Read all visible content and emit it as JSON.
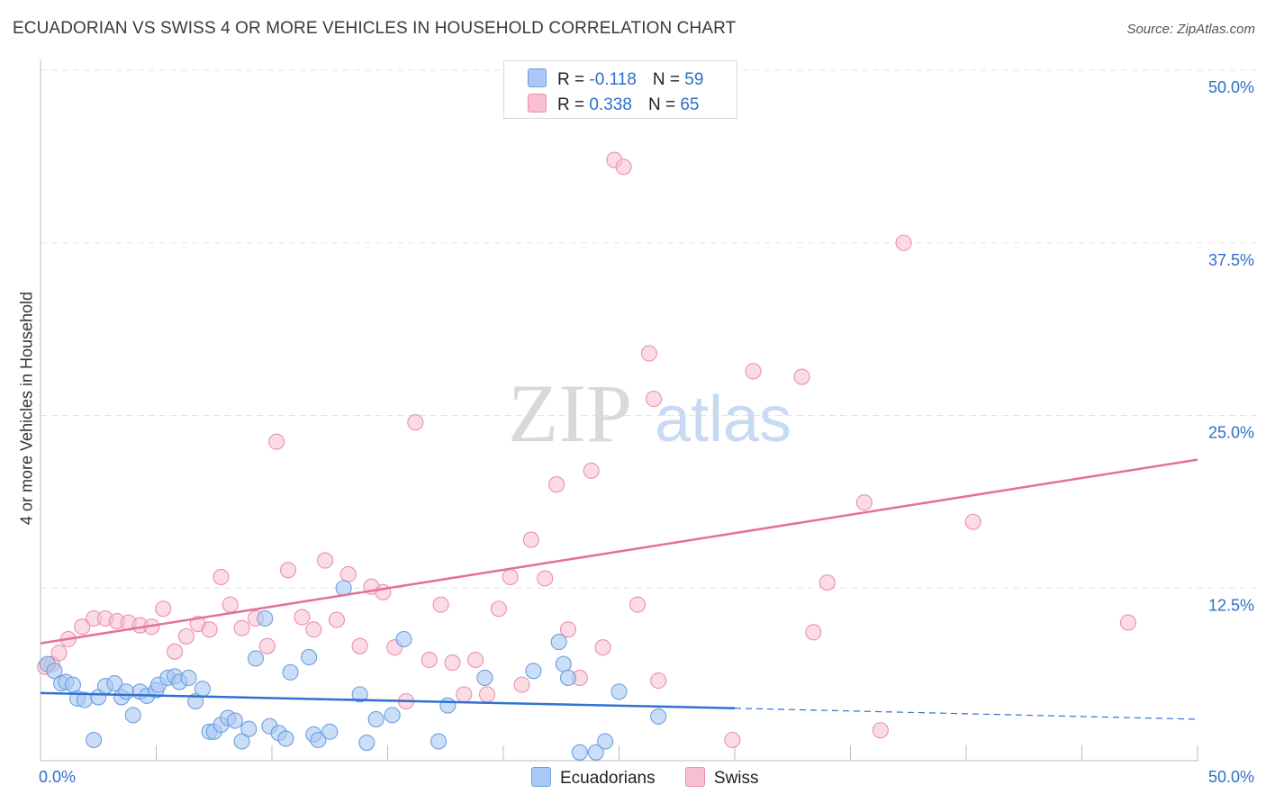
{
  "title": "ECUADORIAN VS SWISS 4 OR MORE VEHICLES IN HOUSEHOLD CORRELATION CHART",
  "source": "Source: ZipAtlas.com",
  "watermark": {
    "zip": "ZIP",
    "atlas": "atlas"
  },
  "legend": {
    "r_label": "R =",
    "n_label": "N =",
    "rows": [
      {
        "r": "-0.118",
        "n": "59"
      },
      {
        "r": "0.338",
        "n": "65"
      }
    ]
  },
  "colors": {
    "ecuadorian_fill": "#a9c8f3",
    "ecuadorian_stroke": "#6d9fde",
    "ecuadorian_line": "#2f72d2",
    "swiss_fill": "#f8bfd0",
    "swiss_stroke": "#ec8fae",
    "swiss_line": "#e4709a",
    "tick_label": "#2e6fc9",
    "grid": "#e4e4e4"
  },
  "chart_data": {
    "type": "scatter",
    "xlabel": "",
    "ylabel": "4 or more Vehicles in Household",
    "xlim": [
      0,
      50
    ],
    "ylim": [
      0,
      50
    ],
    "x_tick_labels": [
      "0.0%",
      "50.0%"
    ],
    "y_ticks": [
      12.5,
      25.0,
      37.5,
      50.0
    ],
    "y_tick_labels": [
      "12.5%",
      "25.0%",
      "37.5%",
      "50.0%"
    ],
    "grid": true,
    "legend_position": "bottom-center",
    "series": [
      {
        "name": "Ecuadorians",
        "r": -0.118,
        "n": 59,
        "trend": {
          "x0": 0,
          "y0": 4.9,
          "x1": 30,
          "y1": 3.8,
          "dashed_to_x": 50,
          "dashed_end_y": 3.0
        },
        "points": [
          [
            0.3,
            7.0
          ],
          [
            0.6,
            6.5
          ],
          [
            0.9,
            5.6
          ],
          [
            1.1,
            5.7
          ],
          [
            1.4,
            5.5
          ],
          [
            1.6,
            4.5
          ],
          [
            1.9,
            4.4
          ],
          [
            2.3,
            1.5
          ],
          [
            2.5,
            4.6
          ],
          [
            2.8,
            5.4
          ],
          [
            3.2,
            5.6
          ],
          [
            3.5,
            4.6
          ],
          [
            3.7,
            5.0
          ],
          [
            4.0,
            3.3
          ],
          [
            4.3,
            5.0
          ],
          [
            4.6,
            4.7
          ],
          [
            5.0,
            5.1
          ],
          [
            5.1,
            5.5
          ],
          [
            5.5,
            6.0
          ],
          [
            5.8,
            6.1
          ],
          [
            6.0,
            5.7
          ],
          [
            6.4,
            6.0
          ],
          [
            6.7,
            4.3
          ],
          [
            7.0,
            5.2
          ],
          [
            7.3,
            2.1
          ],
          [
            7.5,
            2.1
          ],
          [
            7.8,
            2.6
          ],
          [
            8.1,
            3.1
          ],
          [
            8.4,
            2.9
          ],
          [
            8.7,
            1.4
          ],
          [
            9.0,
            2.3
          ],
          [
            9.3,
            7.4
          ],
          [
            9.7,
            10.3
          ],
          [
            9.9,
            2.5
          ],
          [
            10.3,
            2.0
          ],
          [
            10.6,
            1.6
          ],
          [
            10.8,
            6.4
          ],
          [
            11.6,
            7.5
          ],
          [
            11.8,
            1.9
          ],
          [
            12.0,
            1.5
          ],
          [
            12.5,
            2.1
          ],
          [
            13.1,
            12.5
          ],
          [
            13.8,
            4.8
          ],
          [
            14.1,
            1.3
          ],
          [
            14.5,
            3.0
          ],
          [
            15.2,
            3.3
          ],
          [
            15.7,
            8.8
          ],
          [
            17.2,
            1.4
          ],
          [
            17.6,
            4.0
          ],
          [
            19.2,
            6.0
          ],
          [
            21.3,
            6.5
          ],
          [
            22.4,
            8.6
          ],
          [
            22.6,
            7.0
          ],
          [
            22.8,
            6.0
          ],
          [
            23.3,
            0.6
          ],
          [
            24.0,
            0.6
          ],
          [
            24.4,
            1.4
          ],
          [
            25.0,
            5.0
          ],
          [
            26.7,
            3.2
          ]
        ]
      },
      {
        "name": "Swiss",
        "r": 0.338,
        "n": 65,
        "trend": {
          "x0": 0,
          "y0": 8.5,
          "x1": 50,
          "y1": 21.8
        },
        "points": [
          [
            0.2,
            6.8
          ],
          [
            0.5,
            7.0
          ],
          [
            0.8,
            7.8
          ],
          [
            1.2,
            8.8
          ],
          [
            1.8,
            9.7
          ],
          [
            2.3,
            10.3
          ],
          [
            2.8,
            10.3
          ],
          [
            3.3,
            10.1
          ],
          [
            3.8,
            10.0
          ],
          [
            4.3,
            9.8
          ],
          [
            4.8,
            9.7
          ],
          [
            5.3,
            11.0
          ],
          [
            5.8,
            7.9
          ],
          [
            6.3,
            9.0
          ],
          [
            6.8,
            9.9
          ],
          [
            7.3,
            9.5
          ],
          [
            7.8,
            13.3
          ],
          [
            8.2,
            11.3
          ],
          [
            8.7,
            9.6
          ],
          [
            9.3,
            10.3
          ],
          [
            9.8,
            8.3
          ],
          [
            10.2,
            23.1
          ],
          [
            10.7,
            13.8
          ],
          [
            11.3,
            10.4
          ],
          [
            11.8,
            9.5
          ],
          [
            12.3,
            14.5
          ],
          [
            12.8,
            10.2
          ],
          [
            13.3,
            13.5
          ],
          [
            13.8,
            8.3
          ],
          [
            14.3,
            12.6
          ],
          [
            14.8,
            12.2
          ],
          [
            15.3,
            8.2
          ],
          [
            15.8,
            4.3
          ],
          [
            16.2,
            24.5
          ],
          [
            16.8,
            7.3
          ],
          [
            17.3,
            11.3
          ],
          [
            17.8,
            7.1
          ],
          [
            18.3,
            4.8
          ],
          [
            18.8,
            7.3
          ],
          [
            19.3,
            4.8
          ],
          [
            19.8,
            11.0
          ],
          [
            20.3,
            13.3
          ],
          [
            20.8,
            5.5
          ],
          [
            21.2,
            16.0
          ],
          [
            21.8,
            13.2
          ],
          [
            22.3,
            20.0
          ],
          [
            22.8,
            9.5
          ],
          [
            23.3,
            6.0
          ],
          [
            23.8,
            21.0
          ],
          [
            24.3,
            8.2
          ],
          [
            24.8,
            43.5
          ],
          [
            25.2,
            43.0
          ],
          [
            25.8,
            11.3
          ],
          [
            26.3,
            29.5
          ],
          [
            26.5,
            26.2
          ],
          [
            26.7,
            5.8
          ],
          [
            29.9,
            1.5
          ],
          [
            30.8,
            28.2
          ],
          [
            32.9,
            27.8
          ],
          [
            33.4,
            9.3
          ],
          [
            34.0,
            12.9
          ],
          [
            35.6,
            18.7
          ],
          [
            36.3,
            2.2
          ],
          [
            37.3,
            37.5
          ],
          [
            40.3,
            17.3
          ],
          [
            47.0,
            10.0
          ]
        ]
      }
    ]
  }
}
